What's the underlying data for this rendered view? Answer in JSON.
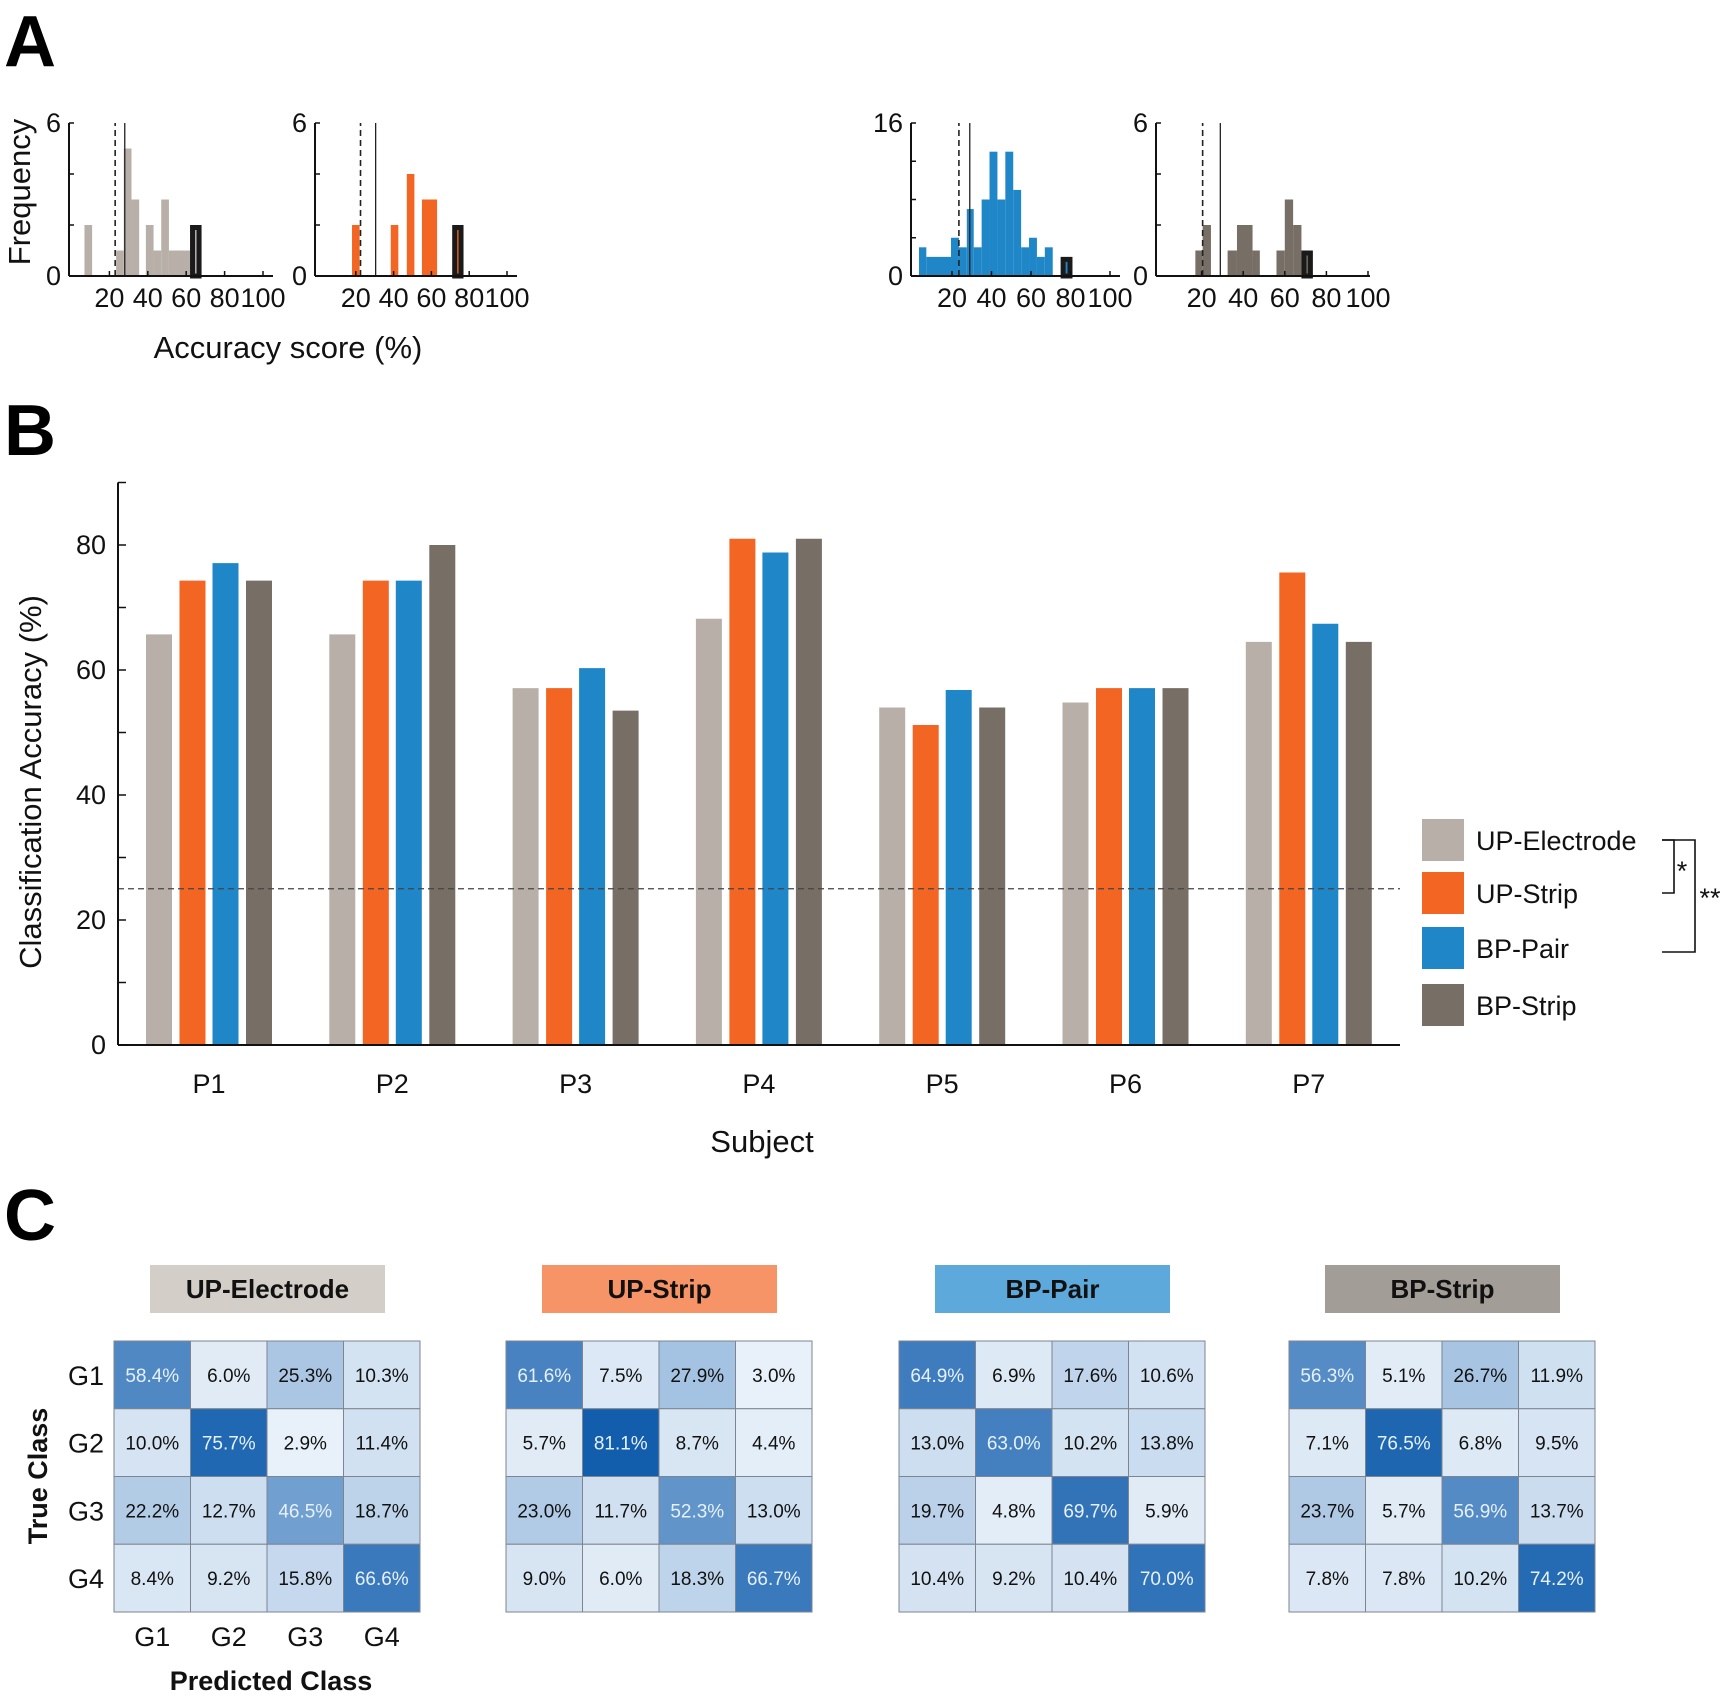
{
  "panel_letters": {
    "a": "A",
    "b": "B",
    "c": "C"
  },
  "chart_data": [
    {
      "type": "histogram",
      "panel": "A",
      "color": "#b8b0a8",
      "ylabel": "Frequency",
      "xlabel": "Accuracy score (%)",
      "xlim": [
        0,
        100
      ],
      "xticks": [
        20,
        40,
        60,
        80,
        100
      ],
      "ylim": [
        0,
        6
      ],
      "ytick_labels": [
        0,
        6
      ],
      "ytick_marks": [
        0,
        2,
        4,
        6
      ],
      "bins": [
        [
          7,
          11,
          2
        ],
        [
          23.5,
          27.5,
          1
        ],
        [
          27.5,
          31.5,
          5
        ],
        [
          31.5,
          35.5,
          3
        ],
        [
          39,
          43,
          2
        ],
        [
          43,
          47,
          1
        ],
        [
          47,
          51,
          3
        ],
        [
          51,
          62,
          1
        ]
      ],
      "highlight_bin": [
        62,
        68,
        2
      ],
      "dashed_line": 23,
      "solid_line": 28
    },
    {
      "type": "histogram",
      "panel": "A",
      "color": "#f26522",
      "xlim": [
        0,
        100
      ],
      "xticks": [
        20,
        40,
        60,
        80,
        100
      ],
      "ylim": [
        0,
        6
      ],
      "ytick_labels": [
        0,
        6
      ],
      "ytick_marks": [
        0,
        2,
        4,
        6
      ],
      "bins": [
        [
          18,
          22,
          2
        ],
        [
          38.5,
          42.5,
          2
        ],
        [
          47,
          51,
          4
        ],
        [
          55,
          63,
          3
        ]
      ],
      "highlight_bin": [
        71,
        77,
        2
      ],
      "dashed_line": 22.5,
      "solid_line": 30.5
    },
    {
      "type": "histogram",
      "panel": "A",
      "color": "#1f86c8",
      "xlim": [
        0,
        100
      ],
      "xticks": [
        20,
        40,
        60,
        80,
        100
      ],
      "ylim": [
        0,
        16
      ],
      "ytick_labels": [
        0,
        16
      ],
      "ytick_marks": [
        0,
        4,
        8,
        12,
        16
      ],
      "bins": [
        [
          3.3,
          7,
          3
        ],
        [
          7,
          19.5,
          2
        ],
        [
          19.5,
          23.5,
          4
        ],
        [
          23.5,
          27.5,
          3
        ],
        [
          27.5,
          31,
          7
        ],
        [
          31,
          35,
          3
        ],
        [
          35,
          39,
          8
        ],
        [
          39,
          43,
          13
        ],
        [
          43,
          47,
          8
        ],
        [
          47,
          51,
          13
        ],
        [
          51,
          55,
          9
        ],
        [
          55,
          59,
          3
        ],
        [
          59,
          63,
          4
        ],
        [
          63,
          67,
          2
        ],
        [
          67,
          71,
          3
        ]
      ],
      "highlight_bin": [
        75,
        81,
        2
      ],
      "dashed_line": 23.5,
      "solid_line": 29
    },
    {
      "type": "histogram",
      "panel": "A",
      "color": "#776f66",
      "xlim": [
        0,
        100
      ],
      "xticks": [
        20,
        40,
        60,
        80,
        100
      ],
      "ylim": [
        0,
        6
      ],
      "ytick_labels": [
        0,
        6
      ],
      "ytick_marks": [
        0,
        2,
        4,
        6
      ],
      "bins": [
        [
          17,
          20.5,
          1
        ],
        [
          20.5,
          24.5,
          2
        ],
        [
          32.5,
          37,
          1
        ],
        [
          37,
          44.5,
          2
        ],
        [
          44.5,
          48,
          1
        ],
        [
          56,
          60,
          1
        ],
        [
          60,
          64,
          3
        ],
        [
          64,
          68,
          2
        ]
      ],
      "highlight_bin": [
        68,
        73.5,
        1
      ],
      "dashed_line": 20.5,
      "solid_line": 29
    },
    {
      "type": "bar",
      "panel": "B",
      "xlabel": "Subject",
      "ylabel": "Classification Accuracy (%)",
      "categories": [
        "P1",
        "P2",
        "P3",
        "P4",
        "P5",
        "P6",
        "P7"
      ],
      "ylim": [
        0,
        90
      ],
      "yticks": [
        0,
        20,
        40,
        60,
        80
      ],
      "ytick_marks": [
        0,
        10,
        20,
        30,
        40,
        50,
        60,
        70,
        80,
        90
      ],
      "chance_level": 25,
      "legend_position": "right",
      "series": [
        {
          "name": "UP-Electrode",
          "color": "#b8b0a8",
          "values": [
            65.7,
            65.7,
            57.1,
            68.2,
            54.0,
            54.8,
            64.5
          ]
        },
        {
          "name": "UP-Strip",
          "color": "#f26522",
          "values": [
            74.3,
            74.3,
            57.1,
            81.0,
            51.2,
            57.1,
            75.6
          ]
        },
        {
          "name": "BP-Pair",
          "color": "#1f86c8",
          "values": [
            77.1,
            74.3,
            60.3,
            78.8,
            56.8,
            57.1,
            67.4
          ]
        },
        {
          "name": "BP-Strip",
          "color": "#776f66",
          "values": [
            74.3,
            80.0,
            53.5,
            81.0,
            54.0,
            57.1,
            64.5
          ]
        }
      ],
      "significance": [
        {
          "between": [
            "UP-Electrode",
            "UP-Strip"
          ],
          "label": "*"
        },
        {
          "between": [
            "UP-Electrode",
            "BP-Pair"
          ],
          "label": "**"
        }
      ]
    },
    {
      "type": "heatmap",
      "panel": "C",
      "title": "UP-Electrode",
      "header_color": "#d3cec8",
      "ylabel": "True Class",
      "xlabel": "Predicted Class",
      "rows": [
        "G1",
        "G2",
        "G3",
        "G4"
      ],
      "cols": [
        "G1",
        "G2",
        "G3",
        "G4"
      ],
      "values": [
        [
          58.4,
          6.0,
          25.3,
          10.3
        ],
        [
          10.0,
          75.7,
          2.9,
          11.4
        ],
        [
          22.2,
          12.7,
          46.5,
          18.7
        ],
        [
          8.4,
          9.2,
          15.8,
          66.6
        ]
      ]
    },
    {
      "type": "heatmap",
      "panel": "C",
      "title": "UP-Strip",
      "header_color": "#f69468",
      "values": [
        [
          61.6,
          7.5,
          27.9,
          3.0
        ],
        [
          5.7,
          81.1,
          8.7,
          4.4
        ],
        [
          23.0,
          11.7,
          52.3,
          13.0
        ],
        [
          9.0,
          6.0,
          18.3,
          66.7
        ]
      ]
    },
    {
      "type": "heatmap",
      "panel": "C",
      "title": "BP-Pair",
      "header_color": "#5ea9dc",
      "values": [
        [
          64.9,
          6.9,
          17.6,
          10.6
        ],
        [
          13.0,
          63.0,
          10.2,
          13.8
        ],
        [
          19.7,
          4.8,
          69.7,
          5.9
        ],
        [
          10.4,
          9.2,
          10.4,
          70.0
        ]
      ]
    },
    {
      "type": "heatmap",
      "panel": "C",
      "title": "BP-Strip",
      "header_color": "#a29d96",
      "values": [
        [
          56.3,
          5.1,
          26.7,
          11.9
        ],
        [
          7.1,
          76.5,
          6.8,
          9.5
        ],
        [
          23.7,
          5.7,
          56.9,
          13.7
        ],
        [
          7.8,
          7.8,
          10.2,
          74.2
        ]
      ]
    }
  ]
}
